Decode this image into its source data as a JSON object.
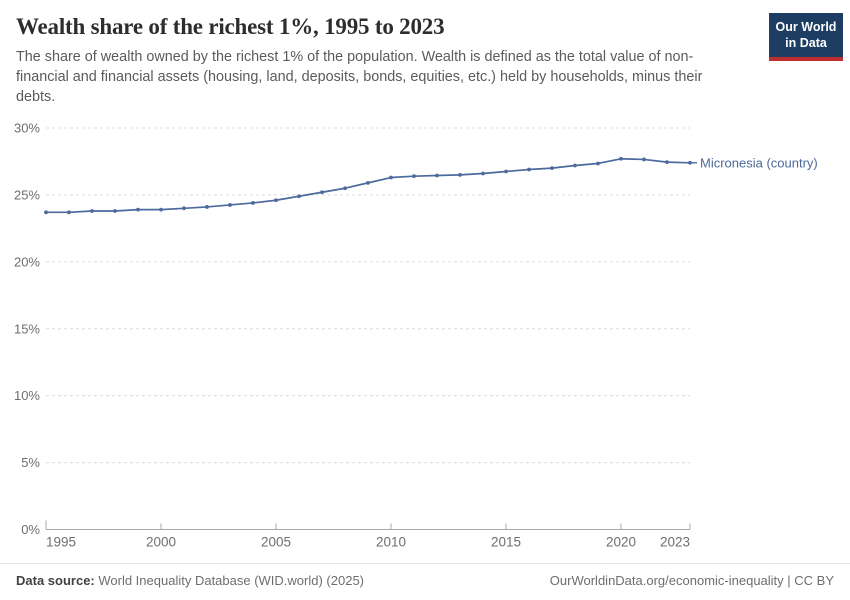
{
  "header": {
    "title": "Wealth share of the richest 1%, 1995 to 2023",
    "subtitle": "The share of wealth owned by the richest 1% of the population. Wealth is defined as the total value of non-financial and financial assets (housing, land, deposits, bonds, equities, etc.) held by households, minus their debts.",
    "logo": {
      "line1": "Our World",
      "line2": "in Data"
    }
  },
  "chart_data": {
    "type": "line",
    "title": "Wealth share of the richest 1%, 1995 to 2023",
    "xlabel": "",
    "ylabel": "",
    "xlim": [
      1995,
      2023
    ],
    "ylim": [
      0,
      30
    ],
    "grid": "dashed-horizontal",
    "legend_position": "end-of-line-label",
    "y_ticks": [
      0,
      5,
      10,
      15,
      20,
      25,
      30
    ],
    "y_tick_labels": [
      "0%",
      "5%",
      "10%",
      "15%",
      "20%",
      "25%",
      "30%"
    ],
    "x_ticks": [
      1995,
      2000,
      2005,
      2010,
      2015,
      2020,
      2023
    ],
    "x_tick_labels": [
      "1995",
      "2000",
      "2005",
      "2010",
      "2015",
      "2020",
      "2023"
    ],
    "series": [
      {
        "name": "Micronesia (country)",
        "color": "#4c6a9c",
        "x": [
          1995,
          1996,
          1997,
          1998,
          1999,
          2000,
          2001,
          2002,
          2003,
          2004,
          2005,
          2006,
          2007,
          2008,
          2009,
          2010,
          2011,
          2012,
          2013,
          2014,
          2015,
          2016,
          2017,
          2018,
          2019,
          2020,
          2021,
          2022,
          2023
        ],
        "values": [
          23.7,
          23.7,
          23.8,
          23.8,
          23.9,
          23.9,
          24.0,
          24.1,
          24.25,
          24.4,
          24.6,
          24.9,
          25.2,
          25.5,
          25.9,
          26.3,
          26.4,
          26.45,
          26.5,
          26.6,
          26.75,
          26.9,
          27.0,
          27.2,
          27.35,
          27.7,
          27.65,
          27.45,
          27.4
        ]
      }
    ],
    "end_label": "Micronesia (country)"
  },
  "footer": {
    "data_source_label": "Data source:",
    "data_source_value": " World Inequality Database (WID.world) (2025)",
    "credit": "OurWorldinData.org/economic-inequality | CC BY"
  },
  "colors": {
    "line": "#4c6a9c",
    "grid": "#dcdcdc",
    "axis": "#a8a8a8",
    "tick_text": "#6e6e6e",
    "logo_bg": "#1d3d63",
    "logo_red": "#bf2e31"
  }
}
